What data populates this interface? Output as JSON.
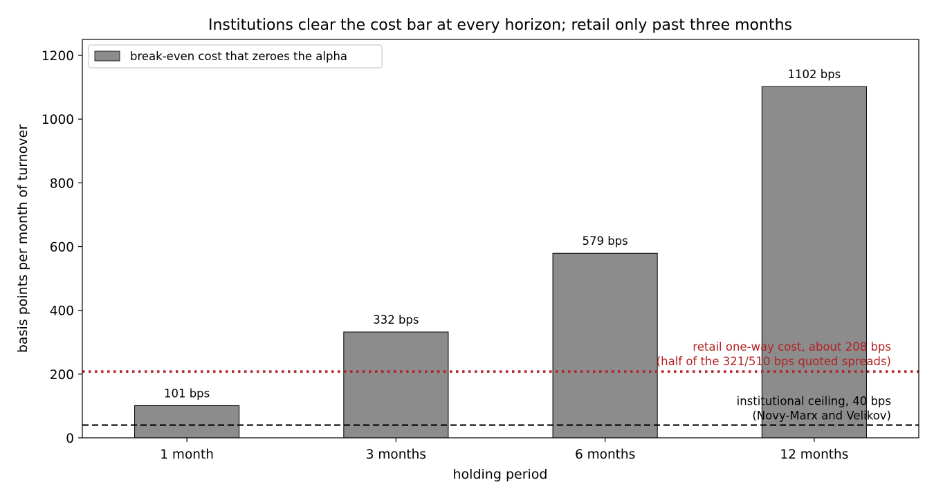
{
  "chart_data": {
    "type": "bar",
    "title": "Institutions clear the cost bar at every horizon; retail only past three months",
    "xlabel": "holding period",
    "ylabel": "basis points per month of turnover",
    "categories": [
      "1 month",
      "3 months",
      "6 months",
      "12 months"
    ],
    "series": [
      {
        "name": "break-even cost that zeroes the alpha",
        "values": [
          101,
          332,
          579,
          1102
        ],
        "labels": [
          "101 bps",
          "332 bps",
          "579 bps",
          "1102 bps"
        ],
        "color": "#8c8c8c"
      }
    ],
    "ylim": [
      0,
      1250
    ],
    "yticks": [
      0,
      200,
      400,
      600,
      800,
      1000,
      1200
    ],
    "grid": false,
    "legend_position": "top-left",
    "reference_lines": [
      {
        "value": 208,
        "style": "dotted",
        "color": "#b22222",
        "label_line1": "retail one-way cost, about 208 bps",
        "label_line2": "(half of the 321/510 bps quoted spreads)"
      },
      {
        "value": 40,
        "style": "dashed",
        "color": "#000000",
        "label_line1": "institutional ceiling, 40 bps",
        "label_line2": "(Novy-Marx and Velikov)"
      }
    ]
  }
}
